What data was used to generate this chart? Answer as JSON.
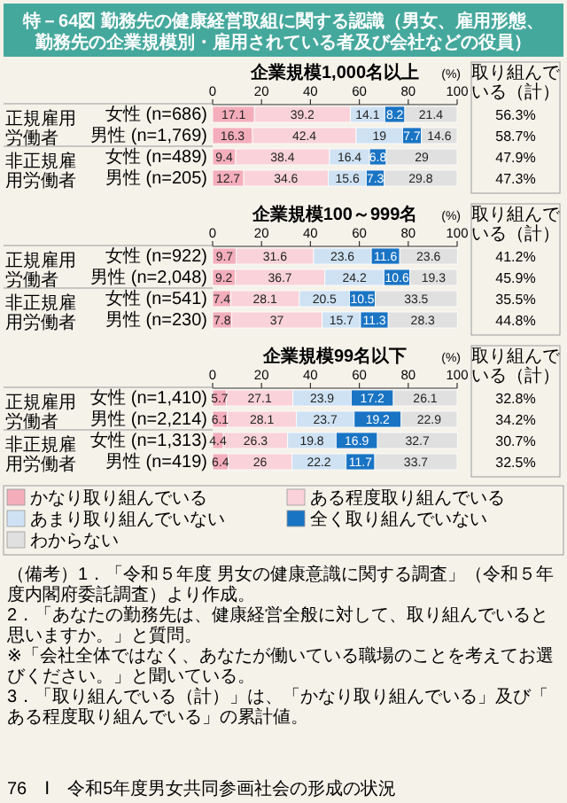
{
  "chart_data": [
    {
      "type": "bar",
      "orientation": "horizontal",
      "stacked": true,
      "data_labels": true,
      "title": "特－64図 勤務先の健康経営取組に関する認識（男女、雇用形態、勤務先の企業規模別・雇用されている者及び会社などの役員）",
      "subtitle": "企業規模1,000名以上",
      "xlabel": "(%)",
      "y2label": "取り組んでいる（計）",
      "xlim": [
        0,
        100
      ],
      "xticks": [
        0,
        20,
        40,
        60,
        80,
        100
      ],
      "categories": [
        "女性 (n=686)",
        "男性 (n=1,769)",
        "女性 (n=489)",
        "男性 (n=205)"
      ],
      "series": [
        {
          "color": "#f4aebb",
          "values": [
            17.1,
            16.3,
            9.4,
            12.7
          ]
        },
        {
          "color": "#f9d3d9",
          "values": [
            39.2,
            42.4,
            38.4,
            34.6
          ]
        },
        {
          "color": "#cfe2f3",
          "values": [
            14.1,
            19.0,
            16.4,
            15.6
          ]
        },
        {
          "color": "#1a74c4",
          "values": [
            8.2,
            7.7,
            6.8,
            7.3
          ]
        },
        {
          "color": "#e0e0e0",
          "values": [
            21.4,
            14.6,
            29.0,
            29.8
          ]
        }
      ],
      "annotations": [
        "正規雇用労働者",
        "非正規雇用労働者",
        "56.3%",
        "58.7%",
        "47.9%",
        "47.3%"
      ]
    },
    {
      "type": "bar",
      "orientation": "horizontal",
      "stacked": true,
      "data_labels": true,
      "subtitle": "企業規模100～999名",
      "xlabel": "(%)",
      "y2label": "取り組んでいる（計）",
      "xlim": [
        0,
        100
      ],
      "xticks": [
        0,
        20,
        40,
        60,
        80,
        100
      ],
      "categories": [
        "女性 (n=922)",
        "男性 (n=2,048)",
        "女性 (n=541)",
        "男性 (n=230)"
      ],
      "series": [
        {
          "color": "#f4aebb",
          "values": [
            9.7,
            9.2,
            7.4,
            7.8
          ]
        },
        {
          "color": "#f9d3d9",
          "values": [
            31.6,
            36.7,
            28.1,
            37.0
          ]
        },
        {
          "color": "#cfe2f3",
          "values": [
            23.6,
            24.2,
            20.5,
            15.7
          ]
        },
        {
          "color": "#1a74c4",
          "values": [
            11.6,
            10.6,
            10.5,
            11.3
          ]
        },
        {
          "color": "#e0e0e0",
          "values": [
            23.6,
            19.3,
            33.5,
            28.3
          ]
        }
      ],
      "annotations": [
        "正規雇用労働者",
        "非正規雇用労働者",
        "41.2%",
        "45.9%",
        "35.5%",
        "44.8%"
      ]
    },
    {
      "type": "bar",
      "orientation": "horizontal",
      "stacked": true,
      "data_labels": true,
      "subtitle": "企業規模99名以下",
      "xlabel": "(%)",
      "y2label": "取り組んでいる（計）",
      "xlim": [
        0,
        100
      ],
      "xticks": [
        0,
        20,
        40,
        60,
        80,
        100
      ],
      "legend": "bottom",
      "categories": [
        "女性 (n=1,410)",
        "男性 (n=2,214)",
        "女性 (n=1,313)",
        "男性 (n=419)"
      ],
      "series": [
        {
          "name": "かなり取り組んでいる",
          "color": "#f4aebb",
          "values": [
            5.7,
            6.1,
            4.4,
            6.4
          ]
        },
        {
          "name": "ある程度取り組んでいる",
          "color": "#f9d3d9",
          "values": [
            27.1,
            28.1,
            26.3,
            26.0
          ]
        },
        {
          "name": "あまり取り組んでいない",
          "color": "#cfe2f3",
          "values": [
            23.9,
            23.7,
            19.8,
            22.2
          ]
        },
        {
          "name": "全く取り組んでいない",
          "color": "#1a74c4",
          "values": [
            17.2,
            19.2,
            16.9,
            11.7
          ]
        },
        {
          "name": "わからない",
          "color": "#e0e0e0",
          "values": [
            26.1,
            22.9,
            32.7,
            33.7
          ]
        }
      ],
      "annotations": [
        "正規雇用労働者",
        "非正規雇用労働者",
        "32.8%",
        "34.2%",
        "30.7%",
        "32.5%",
        "（備考）1．「令和５年度 男女の健康意識に関する調査」（令和５年度内閣府委託調査）より作成。",
        "2．「あなたの勤務先は、健康経営全般に対して、取り組んでいると思いますか。」と質問。",
        "※「会社全体ではなく、あなたが働いている職場のことを考えてお選びください。」と聞いている。",
        "3．「取り組んでいる（計）」は、「かなり取り組んでいる」及び「ある程度取り組んでいる」の累計値。",
        "76　Ⅰ　令和5年度男女共同参画社会の形成の状況"
      ]
    }
  ]
}
